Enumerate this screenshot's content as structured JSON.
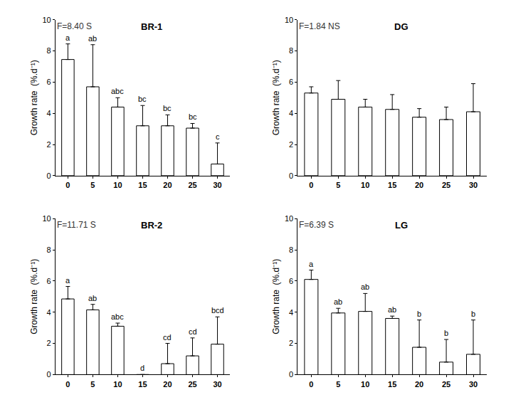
{
  "chart_data": [
    {
      "type": "bar",
      "title": "BR-1",
      "annotations": [
        "F=8.40 S"
      ],
      "y_label": "Growth rate  (%.d⁻¹)",
      "categories": [
        "0",
        "5",
        "10",
        "15",
        "20",
        "25",
        "30"
      ],
      "values": [
        7.45,
        5.7,
        4.4,
        3.2,
        3.2,
        3.05,
        0.75
      ],
      "error": [
        1.0,
        2.7,
        0.6,
        1.3,
        0.7,
        0.3,
        1.35
      ],
      "letters": [
        "a",
        "ab",
        "abc",
        "bc",
        "bc",
        "bc",
        "c"
      ],
      "color": "#ffffff",
      "ylim": [
        0,
        10
      ],
      "yticks": [
        0,
        2,
        4,
        6,
        8,
        10
      ],
      "grid": false
    },
    {
      "type": "bar",
      "title": "DG",
      "annotations": [
        "F=1.84 NS"
      ],
      "y_label": "Growth rate  (%.d⁻¹)",
      "categories": [
        "0",
        "5",
        "10",
        "15",
        "20",
        "25",
        "30"
      ],
      "values": [
        5.3,
        4.9,
        4.4,
        4.25,
        3.75,
        3.6,
        4.1
      ],
      "error": [
        0.4,
        1.2,
        0.5,
        0.95,
        0.55,
        0.8,
        1.8
      ],
      "color": "#ffffff",
      "ylim": [
        0,
        10
      ],
      "yticks": [
        0,
        2,
        4,
        6,
        8,
        10
      ],
      "grid": false
    },
    {
      "type": "bar",
      "title": "BR-2",
      "annotations": [
        "F=11.71 S"
      ],
      "y_label": "Growth rate  (%.d⁻¹)",
      "categories": [
        "0",
        "5",
        "10",
        "15",
        "20",
        "25",
        "30"
      ],
      "values": [
        4.85,
        4.15,
        3.1,
        0,
        0.7,
        1.2,
        1.95
      ],
      "error": [
        0.8,
        0.35,
        0.2,
        0,
        1.3,
        1.15,
        1.75
      ],
      "letters": [
        "a",
        "ab",
        "abc",
        "d",
        "cd",
        "cd",
        "bcd"
      ],
      "color": "#ffffff",
      "ylim": [
        0,
        10
      ],
      "yticks": [
        0,
        2,
        4,
        6,
        8,
        10
      ],
      "grid": false
    },
    {
      "type": "bar",
      "title": "LG",
      "annotations": [
        "F=6.39 S"
      ],
      "y_label": "Growth rate  (%.d⁻¹)",
      "categories": [
        "0",
        "5",
        "10",
        "15",
        "20",
        "25",
        "30"
      ],
      "values": [
        6.1,
        3.95,
        4.05,
        3.6,
        1.75,
        0.8,
        1.3
      ],
      "error": [
        0.6,
        0.3,
        1.15,
        0.15,
        1.75,
        1.45,
        2.2
      ],
      "letters": [
        "a",
        "ab",
        "ab",
        "ab",
        "b",
        "b",
        "b"
      ],
      "color": "#ffffff",
      "ylim": [
        0,
        10
      ],
      "yticks": [
        0,
        2,
        4,
        6,
        8,
        10
      ],
      "grid": false
    }
  ]
}
